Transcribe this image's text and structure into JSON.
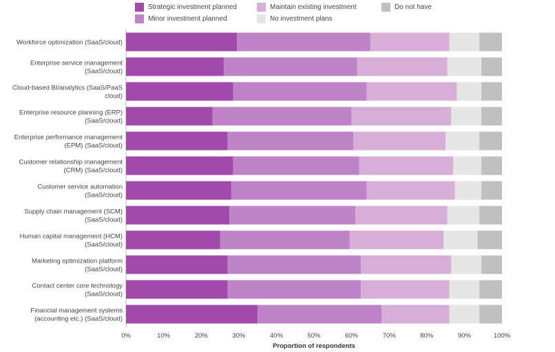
{
  "chart_data": {
    "type": "bar",
    "orientation": "horizontal",
    "stacked": true,
    "title": "",
    "xlabel": "Proportion of respondents",
    "ylabel": "",
    "xlim": [
      0,
      100
    ],
    "x_ticks": [
      "0%",
      "10%",
      "20%",
      "30%",
      "40%",
      "50%",
      "60%",
      "70%",
      "80%",
      "90%",
      "100%"
    ],
    "legend_position": "top",
    "categories": [
      [
        "Workforce optimization (SaaS/cloud)"
      ],
      [
        "Enterprise service management",
        "(SaaS/cloud)"
      ],
      [
        "Cloud-based BI/analytics (SaaS/PaaS",
        "cloud)"
      ],
      [
        "Enterprise resource planning (ERP)",
        "(SaaS/cloud)"
      ],
      [
        "Enterprise performance management",
        "(EPM) (SaaS/cloud)"
      ],
      [
        "Customer relationship management",
        "(CRM) (SaaS/cloud)"
      ],
      [
        "Customer service automation",
        "(SaaS/cloud)"
      ],
      [
        "Supply chain management (SCM)",
        "(SaaS/cloud)"
      ],
      [
        "Human capital management (HCM)",
        "(SaaS/cloud)"
      ],
      [
        "Marketing optimization platform",
        "(SaaS/cloud)"
      ],
      [
        "Contact center core technology",
        "(SaaS/cloud)"
      ],
      [
        "Financial management systems",
        "(accounting etc.) (SaaS/cloud)"
      ]
    ],
    "series": [
      {
        "name": "Strategic investment planned",
        "color": "#a24aab",
        "values": [
          29.5,
          26,
          28.5,
          23,
          27,
          28.5,
          28,
          27.5,
          25,
          27,
          27,
          35
        ]
      },
      {
        "name": "Minor investment planned",
        "color": "#bf83c7",
        "values": [
          35.5,
          35.5,
          35.5,
          37,
          33.5,
          33.5,
          36,
          33.5,
          34.5,
          35.5,
          35.5,
          33
        ]
      },
      {
        "name": "Maintain existing investment",
        "color": "#d7aed8",
        "values": [
          21,
          24,
          24,
          26.5,
          24.5,
          25,
          23.5,
          24.5,
          25,
          24,
          23.5,
          18
        ]
      },
      {
        "name": "No investment plans",
        "color": "#e6e6e6",
        "values": [
          8,
          9,
          6.5,
          8,
          9,
          7.5,
          7,
          8.5,
          9,
          8,
          8,
          8
        ]
      },
      {
        "name": "Do not have",
        "color": "#c0c0c0",
        "values": [
          6,
          5.5,
          5.5,
          5.5,
          6,
          5.5,
          5.5,
          6,
          6.5,
          5.5,
          6,
          6
        ]
      }
    ]
  }
}
